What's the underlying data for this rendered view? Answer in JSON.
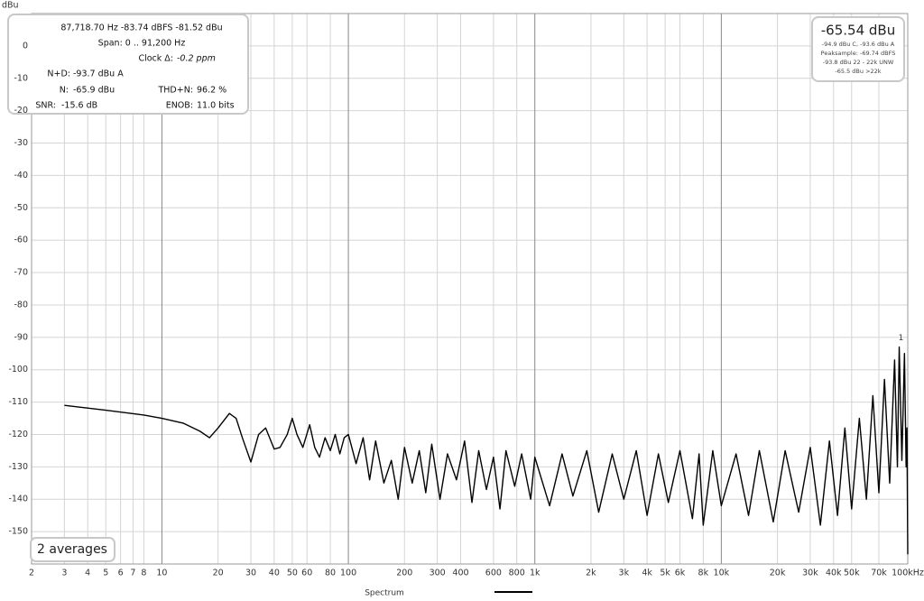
{
  "chart_data": {
    "type": "line",
    "y_label": "dBu",
    "log_x": true,
    "grid": true,
    "xlim": [
      2,
      100000
    ],
    "ylim": [
      -160,
      10
    ],
    "xticks": [
      2,
      3,
      4,
      5,
      6,
      7,
      8,
      10,
      20,
      30,
      40,
      50,
      60,
      80,
      100,
      200,
      300,
      400,
      600,
      800,
      {
        "value": 1000,
        "label": "1k"
      },
      {
        "value": 2000,
        "label": "2k"
      },
      {
        "value": 3000,
        "label": "3k"
      },
      {
        "value": 4000,
        "label": "4k"
      },
      {
        "value": 5000,
        "label": "5k"
      },
      {
        "value": 6000,
        "label": "6k"
      },
      {
        "value": 8000,
        "label": "8k"
      },
      {
        "value": 10000,
        "label": "10k"
      },
      {
        "value": 20000,
        "label": "20k"
      },
      {
        "value": 30000,
        "label": "30k"
      },
      {
        "value": 40000,
        "label": "40k"
      },
      {
        "value": 50000,
        "label": "50k"
      },
      {
        "value": 70000,
        "label": "70k"
      },
      {
        "value": 100000,
        "label": "100kHz"
      }
    ],
    "yticks": [
      0,
      -10,
      -20,
      -30,
      -40,
      -50,
      -60,
      -70,
      -80,
      -90,
      -100,
      -110,
      -120,
      -130,
      -140,
      -150
    ],
    "x": [
      3,
      5,
      8,
      10,
      13,
      16,
      18,
      20,
      23,
      25,
      27,
      30,
      33,
      36,
      40,
      43,
      47,
      50,
      53,
      57,
      62,
      66,
      70,
      75,
      80,
      85,
      90,
      95,
      100,
      110,
      120,
      130,
      140,
      155,
      170,
      185,
      200,
      220,
      240,
      260,
      280,
      310,
      340,
      380,
      420,
      460,
      500,
      550,
      600,
      650,
      700,
      780,
      850,
      950,
      1000,
      1200,
      1400,
      1600,
      1900,
      2200,
      2600,
      3000,
      3500,
      4000,
      4600,
      5200,
      6000,
      7000,
      7600,
      8000,
      9000,
      10000,
      12000,
      14000,
      16000,
      19000,
      22000,
      26000,
      30000,
      34000,
      38000,
      42000,
      46000,
      50000,
      55000,
      60000,
      65000,
      70000,
      75000,
      80000,
      85000,
      88000,
      90000,
      93000,
      96000,
      98000,
      99000,
      100000
    ],
    "series": [
      {
        "name": "Spectrum",
        "color": "#000000",
        "values": [
          -111,
          -112.5,
          -114,
          -115,
          -116.5,
          -119,
          -121,
          -118,
          -113.5,
          -115,
          -121,
          -128.5,
          -120,
          -118,
          -124.5,
          -124,
          -120,
          -115,
          -120,
          -124,
          -117,
          -124,
          -127,
          -121,
          -125,
          -120,
          -126,
          -121,
          -120,
          -129,
          -121,
          -134,
          -122,
          -135,
          -128,
          -140,
          -124,
          -135,
          -125,
          -138,
          -123,
          -140,
          -126,
          -134,
          -122,
          -141,
          -125,
          -137,
          -127,
          -143,
          -125,
          -136,
          -126,
          -140,
          -127,
          -142,
          -126,
          -139,
          -125,
          -144,
          -126,
          -140,
          -125,
          -145,
          -126,
          -141,
          -125,
          -146,
          -126,
          -148,
          -125,
          -142,
          -126,
          -145,
          -125,
          -147,
          -125,
          -144,
          -124,
          -148,
          -122,
          -145,
          -118,
          -143,
          -115,
          -140,
          -108,
          -138,
          -103,
          -135,
          -97,
          -130,
          -93,
          -128,
          -95,
          -130,
          -118,
          -157
        ]
      }
    ],
    "peak_marker": "1",
    "readout": {
      "line1": "87,718.70 Hz  -83.74 dBFS  -81.52 dBu",
      "line2": "Span: 0 .. 91,200 Hz",
      "clock_label": "Clock Δ:",
      "clock_value": "-0.2 ppm",
      "nd_label": "N+D:",
      "nd_value": "-93.7 dBu A",
      "n_label": "N:",
      "n_value": "-65.9 dBu",
      "thdn_label": "THD+N:",
      "thdn_value": "96.2 %",
      "snr_label": "SNR:",
      "snr_value": "-15.6 dB",
      "enob_label": "ENOB:",
      "enob_value": "11.0 bits"
    },
    "level": {
      "main": "-65.54 dBu",
      "line1": "-94.9 dBu C, -93.6 dBu A",
      "line2": "Peaksample: -69.74 dBFS",
      "line3": "-93.8 dBu 22 - 22k UNW",
      "line4": "-65.5 dBu >22k"
    },
    "averages": "2 averages"
  }
}
